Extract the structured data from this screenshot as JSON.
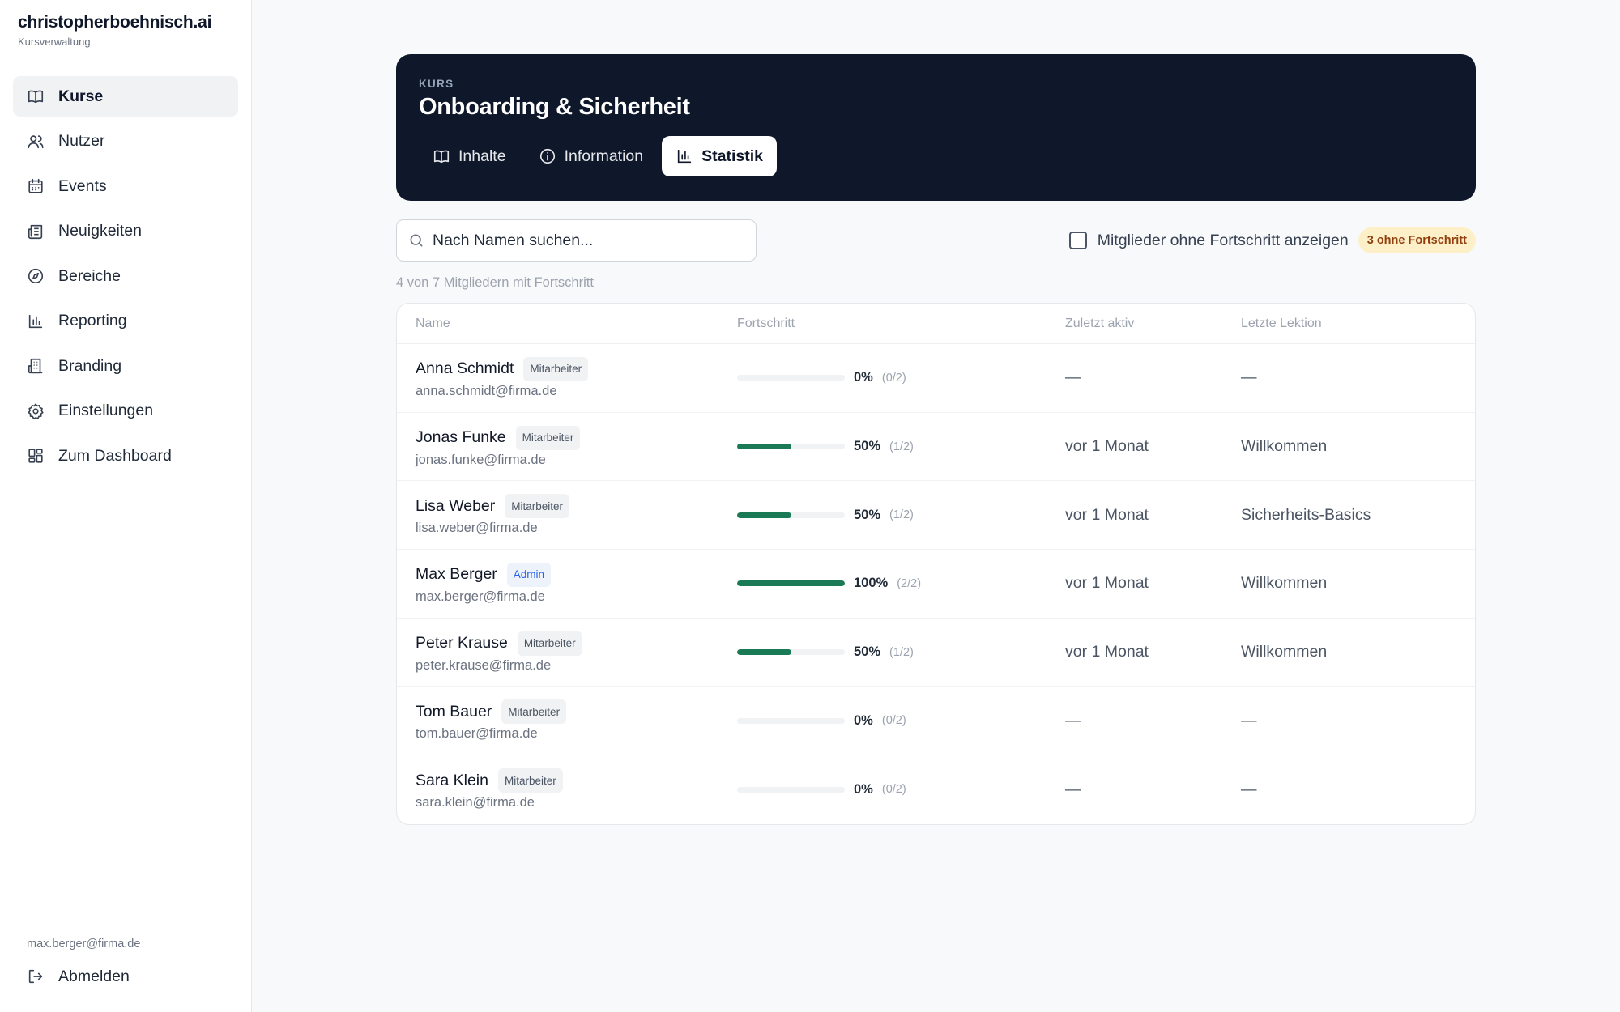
{
  "sidebar": {
    "brand_title": "christopherboehnisch.ai",
    "brand_sub": "Kursverwaltung",
    "items": [
      {
        "label": "Kurse",
        "icon": "book-icon",
        "active": true
      },
      {
        "label": "Nutzer",
        "icon": "users-icon",
        "active": false
      },
      {
        "label": "Events",
        "icon": "calendar-icon",
        "active": false
      },
      {
        "label": "Neuigkeiten",
        "icon": "newspaper-icon",
        "active": false
      },
      {
        "label": "Bereiche",
        "icon": "compass-icon",
        "active": false
      },
      {
        "label": "Reporting",
        "icon": "bar-chart-icon",
        "active": false
      },
      {
        "label": "Branding",
        "icon": "building-icon",
        "active": false
      },
      {
        "label": "Einstellungen",
        "icon": "gear-icon",
        "active": false
      },
      {
        "label": "Zum Dashboard",
        "icon": "dashboard-icon",
        "active": false
      }
    ],
    "user_email": "max.berger@firma.de",
    "logout_label": "Abmelden"
  },
  "course": {
    "kicker": "KURS",
    "title": "Onboarding & Sicherheit",
    "tabs": [
      {
        "label": "Inhalte",
        "icon": "book-icon",
        "active": false
      },
      {
        "label": "Information",
        "icon": "info-icon",
        "active": false
      },
      {
        "label": "Statistik",
        "icon": "bar-chart-icon",
        "active": true
      }
    ]
  },
  "toolbar": {
    "search_placeholder": "Nach Namen suchen...",
    "filter_label": "Mitglieder ohne Fortschritt anzeigen",
    "filter_checked": false,
    "badge": "3 ohne Fortschritt"
  },
  "count_text": "4 von 7 Mitgliedern mit Fortschritt",
  "table": {
    "headers": [
      "Name",
      "Fortschritt",
      "Zuletzt aktiv",
      "Letzte Lektion"
    ],
    "rows": [
      {
        "name": "Anna Schmidt",
        "role": "Mitarbeiter",
        "email": "anna.schmidt@firma.de",
        "progress": 0,
        "pct": "0%",
        "frac": "(0/2)",
        "last_active": "—",
        "last_lesson": "—"
      },
      {
        "name": "Jonas Funke",
        "role": "Mitarbeiter",
        "email": "jonas.funke@firma.de",
        "progress": 0.5,
        "pct": "50%",
        "frac": "(1/2)",
        "last_active": "vor 1 Monat",
        "last_lesson": "Willkommen"
      },
      {
        "name": "Lisa Weber",
        "role": "Mitarbeiter",
        "email": "lisa.weber@firma.de",
        "progress": 0.5,
        "pct": "50%",
        "frac": "(1/2)",
        "last_active": "vor 1 Monat",
        "last_lesson": "Sicherheits-Basics"
      },
      {
        "name": "Max Berger",
        "role": "Admin",
        "email": "max.berger@firma.de",
        "progress": 1,
        "pct": "100%",
        "frac": "(2/2)",
        "last_active": "vor 1 Monat",
        "last_lesson": "Willkommen"
      },
      {
        "name": "Peter Krause",
        "role": "Mitarbeiter",
        "email": "peter.krause@firma.de",
        "progress": 0.5,
        "pct": "50%",
        "frac": "(1/2)",
        "last_active": "vor 1 Monat",
        "last_lesson": "Willkommen"
      },
      {
        "name": "Tom Bauer",
        "role": "Mitarbeiter",
        "email": "tom.bauer@firma.de",
        "progress": 0,
        "pct": "0%",
        "frac": "(0/2)",
        "last_active": "—",
        "last_lesson": "—"
      },
      {
        "name": "Sara Klein",
        "role": "Mitarbeiter",
        "email": "sara.klein@firma.de",
        "progress": 0,
        "pct": "0%",
        "frac": "(0/2)",
        "last_active": "—",
        "last_lesson": "—"
      }
    ]
  },
  "colors": {
    "header_bg": "#0f172a",
    "progress_fill": "#1a7a55",
    "admin_badge": "#2563eb",
    "warn_badge_bg": "#fdf0c9"
  }
}
